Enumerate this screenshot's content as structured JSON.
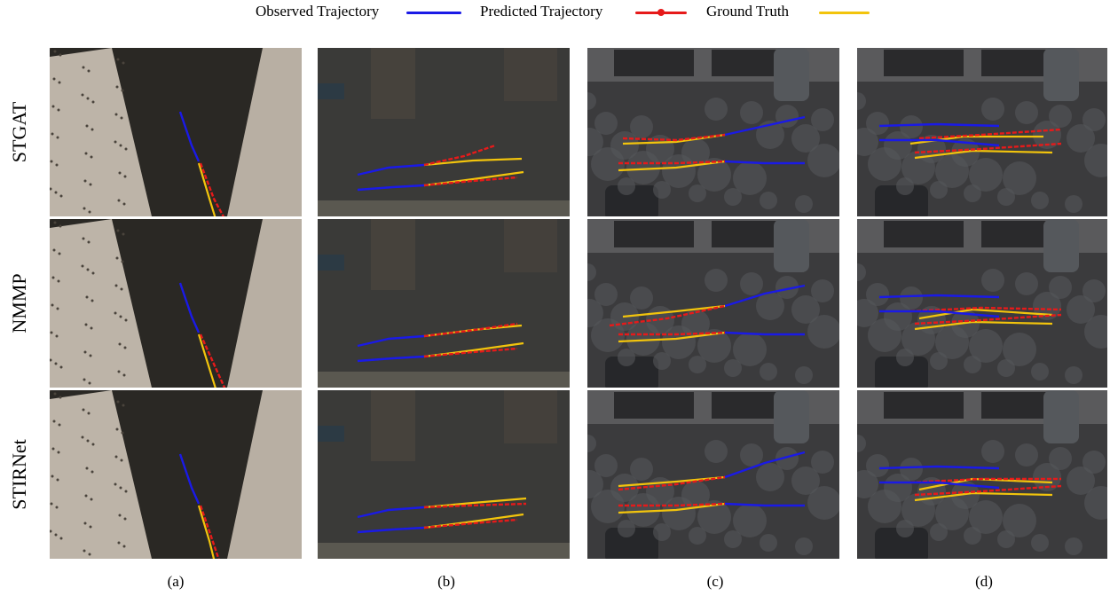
{
  "legend": {
    "items": [
      {
        "label": "Observed Trajectory",
        "color": "#1a1ae6",
        "style": "solid"
      },
      {
        "label": "Predicted Trajectory",
        "color": "#e61a1a",
        "style": "dotted"
      },
      {
        "label": "Ground Truth",
        "color": "#f2c40c",
        "style": "solid"
      }
    ]
  },
  "rows": [
    {
      "label": "STGAT"
    },
    {
      "label": "NMMP"
    },
    {
      "label": "STIRNet"
    }
  ],
  "columns": [
    {
      "label": "(a)",
      "scene": "snowy-sidewalk-scene"
    },
    {
      "label": "(b)",
      "scene": "plaza-with-trees-scene"
    },
    {
      "label": "(c)",
      "scene": "street-with-cars-scene"
    },
    {
      "label": "(d)",
      "scene": "street-with-cars-crowd-scene"
    }
  ],
  "colors": {
    "observed": "#1a1ae6",
    "predicted": "#e61a1a",
    "ground_truth": "#f2c40c"
  }
}
